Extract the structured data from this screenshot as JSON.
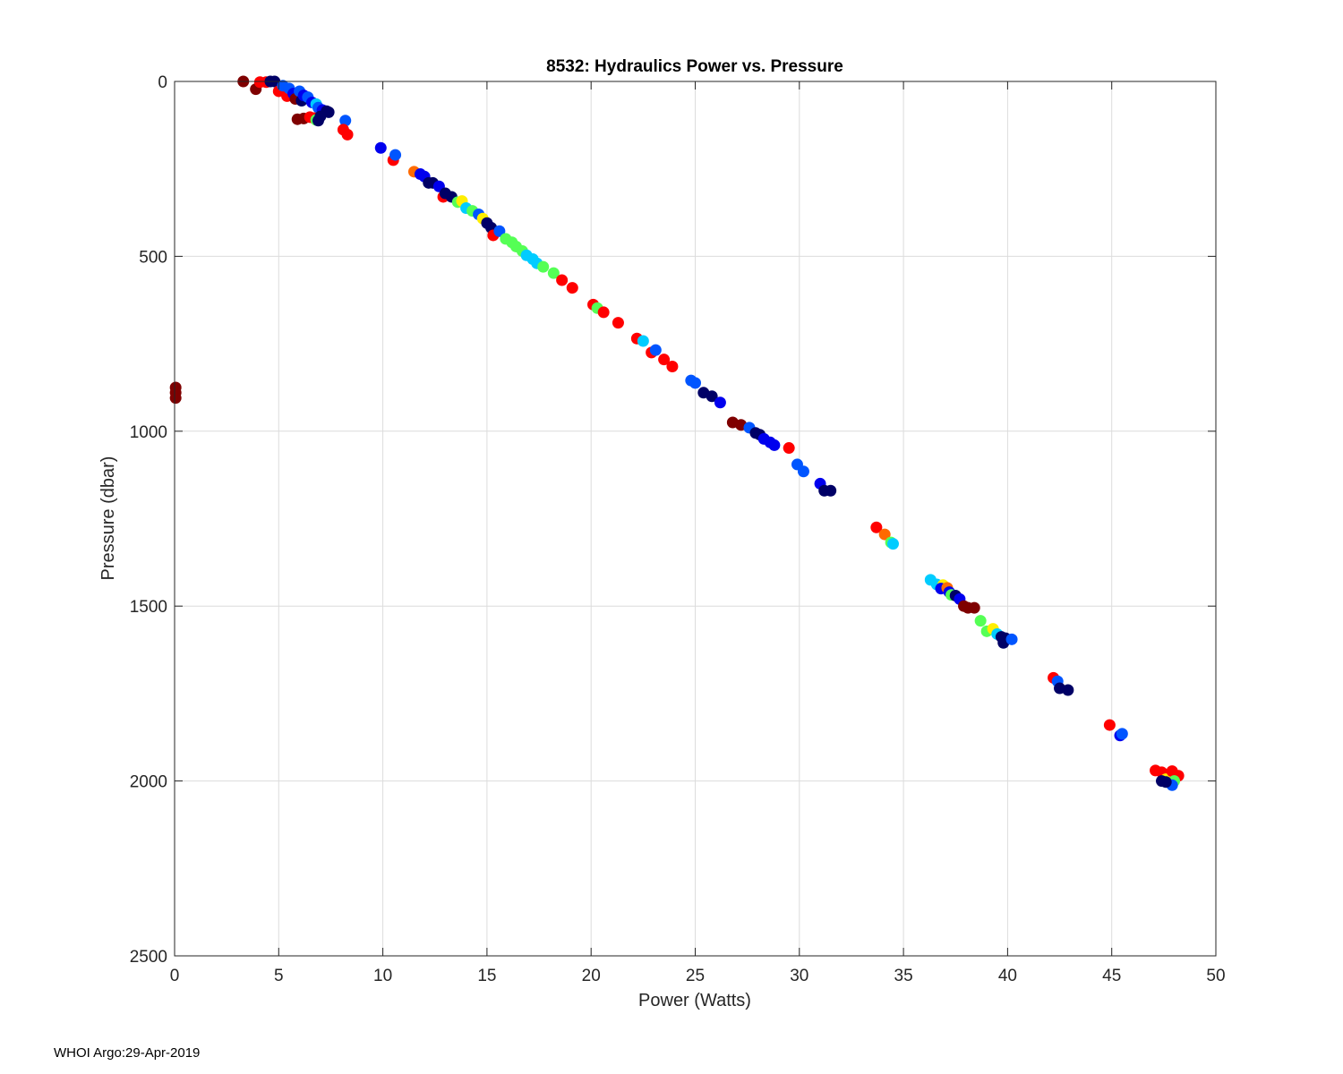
{
  "chart_data": {
    "type": "scatter",
    "title": "8532: Hydraulics Power vs. Pressure",
    "xlabel": "Power (Watts)",
    "ylabel": "Pressure (dbar)",
    "xlim": [
      0,
      50
    ],
    "ylim": [
      0,
      2500
    ],
    "y_reversed": true,
    "grid": true,
    "x_ticks": [
      0,
      5,
      10,
      15,
      20,
      25,
      30,
      35,
      40,
      45,
      50
    ],
    "y_ticks": [
      0,
      500,
      1000,
      1500,
      2000,
      2500
    ],
    "colors": {
      "darkred": "#7f0000",
      "red": "#ff0000",
      "orange": "#ff6a00",
      "yellow": "#ffee00",
      "green": "#55ff55",
      "cyan": "#00ccff",
      "blue": "#0055ff",
      "deepblue": "#0000ee",
      "navy": "#000066"
    },
    "points": [
      {
        "x": 3.3,
        "y": 0,
        "c": "darkred"
      },
      {
        "x": 3.9,
        "y": 22,
        "c": "darkred"
      },
      {
        "x": 4.1,
        "y": 2,
        "c": "red"
      },
      {
        "x": 4.4,
        "y": 2,
        "c": "red"
      },
      {
        "x": 4.6,
        "y": 0,
        "c": "navy"
      },
      {
        "x": 4.8,
        "y": 0,
        "c": "navy"
      },
      {
        "x": 5.0,
        "y": 28,
        "c": "red"
      },
      {
        "x": 5.2,
        "y": 12,
        "c": "blue"
      },
      {
        "x": 5.4,
        "y": 42,
        "c": "red"
      },
      {
        "x": 5.5,
        "y": 20,
        "c": "blue"
      },
      {
        "x": 5.7,
        "y": 35,
        "c": "deepblue"
      },
      {
        "x": 5.8,
        "y": 50,
        "c": "darkred"
      },
      {
        "x": 6.0,
        "y": 28,
        "c": "blue"
      },
      {
        "x": 6.1,
        "y": 55,
        "c": "navy"
      },
      {
        "x": 6.2,
        "y": 40,
        "c": "deepblue"
      },
      {
        "x": 6.4,
        "y": 45,
        "c": "blue"
      },
      {
        "x": 6.6,
        "y": 60,
        "c": "deepblue"
      },
      {
        "x": 6.8,
        "y": 65,
        "c": "cyan"
      },
      {
        "x": 6.9,
        "y": 75,
        "c": "blue"
      },
      {
        "x": 7.1,
        "y": 82,
        "c": "deepblue"
      },
      {
        "x": 7.3,
        "y": 85,
        "c": "navy"
      },
      {
        "x": 7.4,
        "y": 88,
        "c": "navy"
      },
      {
        "x": 5.9,
        "y": 108,
        "c": "darkred"
      },
      {
        "x": 6.2,
        "y": 106,
        "c": "darkred"
      },
      {
        "x": 6.5,
        "y": 102,
        "c": "red"
      },
      {
        "x": 6.7,
        "y": 105,
        "c": "red"
      },
      {
        "x": 6.8,
        "y": 110,
        "c": "green"
      },
      {
        "x": 6.9,
        "y": 112,
        "c": "navy"
      },
      {
        "x": 7.0,
        "y": 100,
        "c": "navy"
      },
      {
        "x": 8.2,
        "y": 112,
        "c": "blue"
      },
      {
        "x": 8.1,
        "y": 138,
        "c": "red"
      },
      {
        "x": 8.3,
        "y": 152,
        "c": "red"
      },
      {
        "x": 9.9,
        "y": 190,
        "c": "deepblue"
      },
      {
        "x": 10.5,
        "y": 225,
        "c": "red"
      },
      {
        "x": 10.6,
        "y": 210,
        "c": "blue"
      },
      {
        "x": 11.5,
        "y": 258,
        "c": "orange"
      },
      {
        "x": 11.8,
        "y": 265,
        "c": "deepblue"
      },
      {
        "x": 12.0,
        "y": 272,
        "c": "deepblue"
      },
      {
        "x": 12.2,
        "y": 290,
        "c": "navy"
      },
      {
        "x": 12.4,
        "y": 290,
        "c": "navy"
      },
      {
        "x": 12.7,
        "y": 300,
        "c": "deepblue"
      },
      {
        "x": 12.9,
        "y": 330,
        "c": "red"
      },
      {
        "x": 13.0,
        "y": 320,
        "c": "navy"
      },
      {
        "x": 13.3,
        "y": 330,
        "c": "navy"
      },
      {
        "x": 13.6,
        "y": 345,
        "c": "green"
      },
      {
        "x": 13.8,
        "y": 342,
        "c": "yellow"
      },
      {
        "x": 14.0,
        "y": 362,
        "c": "cyan"
      },
      {
        "x": 14.3,
        "y": 370,
        "c": "green"
      },
      {
        "x": 14.6,
        "y": 380,
        "c": "blue"
      },
      {
        "x": 14.8,
        "y": 392,
        "c": "yellow"
      },
      {
        "x": 15.0,
        "y": 405,
        "c": "navy"
      },
      {
        "x": 15.2,
        "y": 418,
        "c": "navy"
      },
      {
        "x": 15.3,
        "y": 440,
        "c": "red"
      },
      {
        "x": 15.6,
        "y": 428,
        "c": "blue"
      },
      {
        "x": 15.9,
        "y": 450,
        "c": "green"
      },
      {
        "x": 16.2,
        "y": 460,
        "c": "green"
      },
      {
        "x": 16.4,
        "y": 472,
        "c": "green"
      },
      {
        "x": 16.7,
        "y": 485,
        "c": "green"
      },
      {
        "x": 16.9,
        "y": 497,
        "c": "cyan"
      },
      {
        "x": 17.2,
        "y": 508,
        "c": "cyan"
      },
      {
        "x": 17.4,
        "y": 520,
        "c": "cyan"
      },
      {
        "x": 17.7,
        "y": 530,
        "c": "green"
      },
      {
        "x": 18.2,
        "y": 548,
        "c": "green"
      },
      {
        "x": 18.6,
        "y": 568,
        "c": "red"
      },
      {
        "x": 19.1,
        "y": 590,
        "c": "red"
      },
      {
        "x": 20.1,
        "y": 638,
        "c": "red"
      },
      {
        "x": 20.3,
        "y": 648,
        "c": "green"
      },
      {
        "x": 20.6,
        "y": 660,
        "c": "red"
      },
      {
        "x": 21.3,
        "y": 690,
        "c": "red"
      },
      {
        "x": 22.2,
        "y": 735,
        "c": "red"
      },
      {
        "x": 22.5,
        "y": 742,
        "c": "cyan"
      },
      {
        "x": 22.9,
        "y": 775,
        "c": "red"
      },
      {
        "x": 23.1,
        "y": 768,
        "c": "blue"
      },
      {
        "x": 23.5,
        "y": 795,
        "c": "red"
      },
      {
        "x": 23.9,
        "y": 815,
        "c": "red"
      },
      {
        "x": 24.8,
        "y": 855,
        "c": "blue"
      },
      {
        "x": 25.0,
        "y": 862,
        "c": "blue"
      },
      {
        "x": 25.4,
        "y": 890,
        "c": "navy"
      },
      {
        "x": 25.8,
        "y": 900,
        "c": "navy"
      },
      {
        "x": 26.2,
        "y": 918,
        "c": "deepblue"
      },
      {
        "x": 26.8,
        "y": 975,
        "c": "darkred"
      },
      {
        "x": 27.2,
        "y": 982,
        "c": "darkred"
      },
      {
        "x": 27.6,
        "y": 990,
        "c": "blue"
      },
      {
        "x": 27.9,
        "y": 1005,
        "c": "navy"
      },
      {
        "x": 28.1,
        "y": 1010,
        "c": "navy"
      },
      {
        "x": 28.3,
        "y": 1022,
        "c": "deepblue"
      },
      {
        "x": 28.6,
        "y": 1032,
        "c": "deepblue"
      },
      {
        "x": 28.8,
        "y": 1040,
        "c": "deepblue"
      },
      {
        "x": 29.5,
        "y": 1048,
        "c": "red"
      },
      {
        "x": 29.9,
        "y": 1095,
        "c": "blue"
      },
      {
        "x": 30.2,
        "y": 1115,
        "c": "blue"
      },
      {
        "x": 31.0,
        "y": 1150,
        "c": "deepblue"
      },
      {
        "x": 31.2,
        "y": 1170,
        "c": "navy"
      },
      {
        "x": 31.5,
        "y": 1170,
        "c": "navy"
      },
      {
        "x": 33.7,
        "y": 1275,
        "c": "red"
      },
      {
        "x": 34.1,
        "y": 1295,
        "c": "orange"
      },
      {
        "x": 34.4,
        "y": 1318,
        "c": "green"
      },
      {
        "x": 34.5,
        "y": 1322,
        "c": "cyan"
      },
      {
        "x": 36.3,
        "y": 1425,
        "c": "cyan"
      },
      {
        "x": 36.6,
        "y": 1438,
        "c": "cyan"
      },
      {
        "x": 36.9,
        "y": 1440,
        "c": "yellow"
      },
      {
        "x": 36.8,
        "y": 1450,
        "c": "deepblue"
      },
      {
        "x": 37.1,
        "y": 1448,
        "c": "orange"
      },
      {
        "x": 37.2,
        "y": 1460,
        "c": "deepblue"
      },
      {
        "x": 37.3,
        "y": 1468,
        "c": "green"
      },
      {
        "x": 37.5,
        "y": 1470,
        "c": "navy"
      },
      {
        "x": 37.7,
        "y": 1480,
        "c": "deepblue"
      },
      {
        "x": 37.9,
        "y": 1500,
        "c": "darkred"
      },
      {
        "x": 38.1,
        "y": 1505,
        "c": "darkred"
      },
      {
        "x": 38.4,
        "y": 1505,
        "c": "darkred"
      },
      {
        "x": 38.7,
        "y": 1542,
        "c": "green"
      },
      {
        "x": 39.0,
        "y": 1572,
        "c": "green"
      },
      {
        "x": 39.3,
        "y": 1565,
        "c": "yellow"
      },
      {
        "x": 39.5,
        "y": 1580,
        "c": "cyan"
      },
      {
        "x": 39.7,
        "y": 1588,
        "c": "navy"
      },
      {
        "x": 39.9,
        "y": 1592,
        "c": "navy"
      },
      {
        "x": 39.8,
        "y": 1605,
        "c": "navy"
      },
      {
        "x": 40.2,
        "y": 1595,
        "c": "blue"
      },
      {
        "x": 42.2,
        "y": 1705,
        "c": "red"
      },
      {
        "x": 42.4,
        "y": 1715,
        "c": "blue"
      },
      {
        "x": 42.5,
        "y": 1735,
        "c": "navy"
      },
      {
        "x": 42.9,
        "y": 1740,
        "c": "navy"
      },
      {
        "x": 44.9,
        "y": 1840,
        "c": "red"
      },
      {
        "x": 45.4,
        "y": 1870,
        "c": "deepblue"
      },
      {
        "x": 45.5,
        "y": 1865,
        "c": "blue"
      },
      {
        "x": 47.1,
        "y": 1970,
        "c": "red"
      },
      {
        "x": 47.4,
        "y": 1975,
        "c": "red"
      },
      {
        "x": 47.6,
        "y": 1995,
        "c": "yellow"
      },
      {
        "x": 47.9,
        "y": 1972,
        "c": "red"
      },
      {
        "x": 48.2,
        "y": 1985,
        "c": "red"
      },
      {
        "x": 48.0,
        "y": 2000,
        "c": "green"
      },
      {
        "x": 47.9,
        "y": 2012,
        "c": "blue"
      },
      {
        "x": 47.6,
        "y": 2003,
        "c": "navy"
      },
      {
        "x": 47.4,
        "y": 2000,
        "c": "navy"
      },
      {
        "x": 0.05,
        "y": 875,
        "c": "darkred"
      },
      {
        "x": 0.05,
        "y": 890,
        "c": "darkred"
      },
      {
        "x": 0.05,
        "y": 905,
        "c": "darkred"
      }
    ]
  },
  "footer": {
    "text": "WHOI Argo:29-Apr-2019"
  }
}
